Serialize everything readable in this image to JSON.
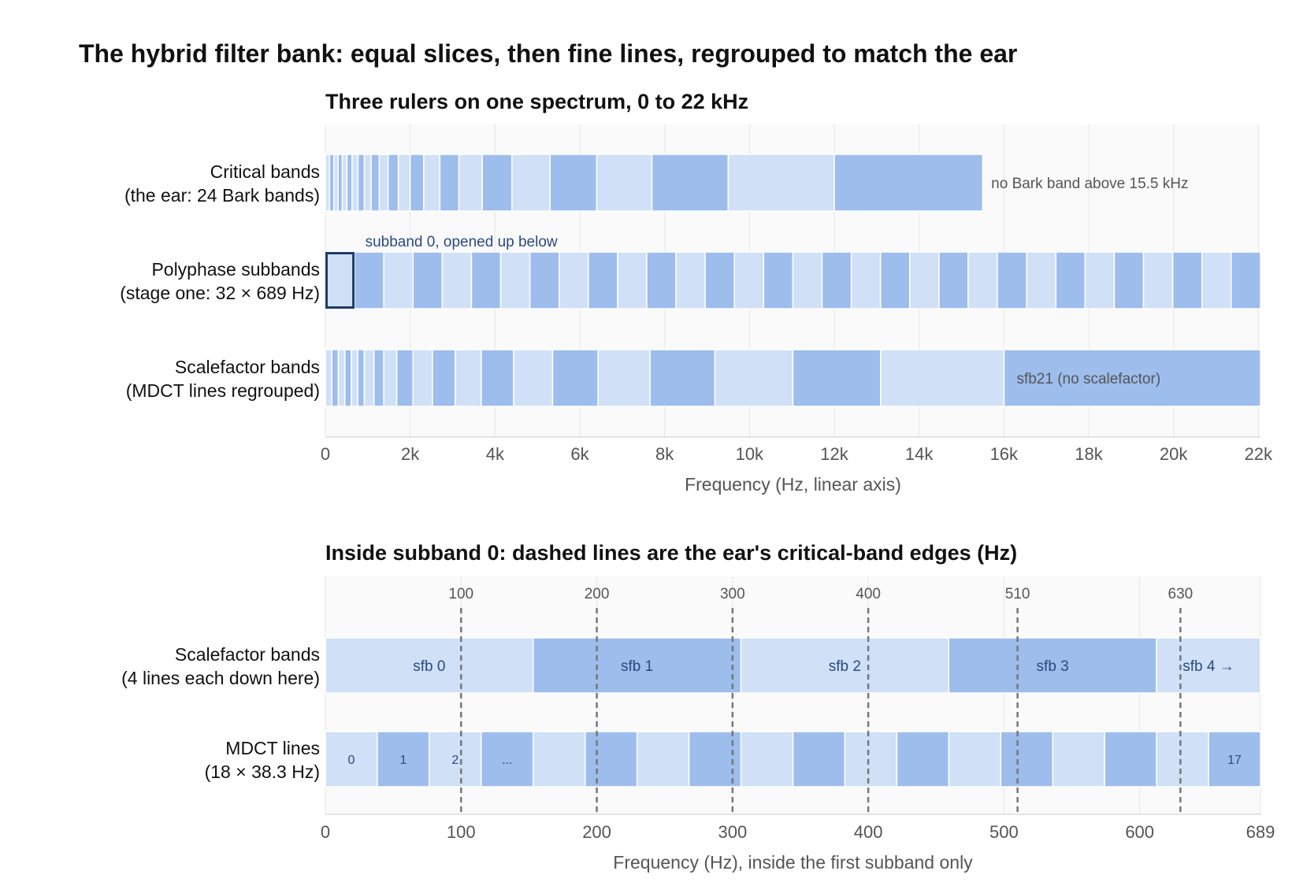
{
  "title": "The hybrid filter bank: equal slices, then fine lines, regrouped to match the ear",
  "colors": {
    "light": "#d0e0f6",
    "dark": "#9dbded",
    "highlight": "#1f3a66",
    "panel_bg": "#fafafa",
    "grid": "#e6e6e6",
    "dash": "#777777"
  },
  "chart_data": [
    {
      "type": "bar",
      "title": "Three rulers on one spectrum, 0 to 22 kHz",
      "xlabel": "Frequency (Hz, linear axis)",
      "xlim": [
        0,
        22050
      ],
      "x_ticks": [
        0,
        2000,
        4000,
        6000,
        8000,
        10000,
        12000,
        14000,
        16000,
        18000,
        20000,
        22000
      ],
      "x_tick_labels": [
        "0",
        "2k",
        "4k",
        "6k",
        "8k",
        "10k",
        "12k",
        "14k",
        "16k",
        "18k",
        "20k",
        "22k"
      ],
      "grid": true,
      "rows": [
        {
          "label_lines": [
            "Critical bands",
            "(the ear: 24 Bark bands)"
          ],
          "edges": [
            0,
            100,
            200,
            300,
            400,
            510,
            630,
            770,
            920,
            1080,
            1270,
            1480,
            1720,
            2000,
            2320,
            2700,
            3150,
            3700,
            4400,
            5300,
            6400,
            7700,
            9500,
            12000,
            15500
          ],
          "annotation": "no Bark band above 15.5 kHz",
          "annotation_x": 15700
        },
        {
          "label_lines": [
            "Polyphase subbands",
            "(stage one: 32 × 689 Hz)"
          ],
          "edges": [
            0,
            689,
            1378,
            2067,
            2756,
            3445,
            4134,
            4823,
            5512,
            6201,
            6890,
            7579,
            8268,
            8957,
            9646,
            10335,
            11024,
            11713,
            12402,
            13091,
            13780,
            14469,
            15158,
            15847,
            16536,
            17225,
            17914,
            18603,
            19292,
            19981,
            20670,
            21359,
            22050
          ],
          "highlight_index": 0,
          "annotation": "subband 0, opened up below",
          "annotation_x": 940
        },
        {
          "label_lines": [
            "Scalefactor bands",
            "(MDCT lines regrouped)"
          ],
          "edges": [
            0,
            153,
            306,
            459,
            612,
            765,
            918,
            1148,
            1378,
            1684,
            2067,
            2526,
            3062,
            3675,
            4440,
            5359,
            6431,
            7656,
            9187,
            11023,
            13093,
            16003,
            22050
          ],
          "annotation": "sfb21 (no scalefactor)",
          "annotation_x": 16300
        }
      ]
    },
    {
      "type": "bar",
      "title": "Inside subband 0: dashed lines are the ear's critical-band edges (Hz)",
      "xlabel": "Frequency (Hz), inside the first subband only",
      "xlim": [
        0,
        689
      ],
      "x_ticks": [
        0,
        100,
        200,
        300,
        400,
        500,
        600,
        689
      ],
      "x_tick_labels": [
        "0",
        "100",
        "200",
        "300",
        "400",
        "500",
        "600",
        "689"
      ],
      "grid": true,
      "critical_band_edges": [
        100,
        200,
        300,
        400,
        510,
        630
      ],
      "critical_band_edge_labels": [
        "100",
        "200",
        "300",
        "400",
        "510",
        "630"
      ],
      "rows": [
        {
          "label_lines": [
            "Scalefactor bands",
            "(4 lines each down here)"
          ],
          "edges": [
            0,
            153.1,
            306.2,
            459.3,
            612.4,
            689
          ],
          "segment_labels": [
            "sfb 0",
            "sfb 1",
            "sfb 2",
            "sfb 3",
            "sfb 4 →"
          ]
        },
        {
          "label_lines": [
            "MDCT lines",
            "(18 × 38.3 Hz)"
          ],
          "line_width": 38.28,
          "count": 18,
          "line_labels": [
            {
              "index": 0,
              "text": "0"
            },
            {
              "index": 1,
              "text": "1"
            },
            {
              "index": 2,
              "text": "2"
            },
            {
              "index": 3,
              "text": "..."
            },
            {
              "index": 17,
              "text": "17"
            }
          ]
        }
      ]
    }
  ]
}
